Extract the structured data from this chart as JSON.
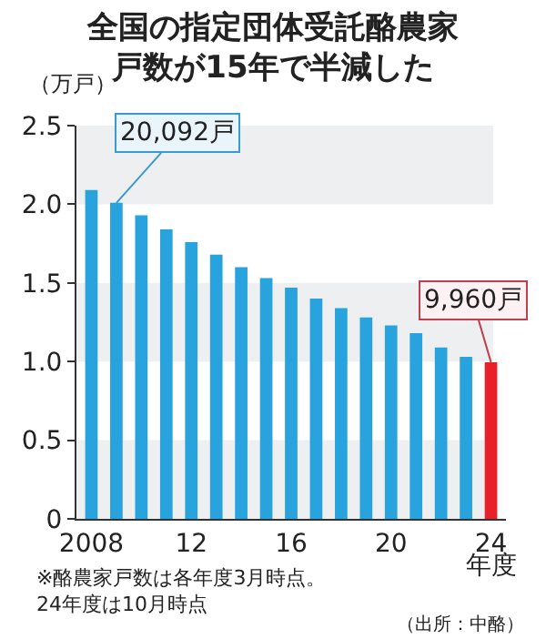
{
  "chart_data": {
    "type": "bar",
    "title": "全国の指定団体受託酪農家",
    "subtitle": "戸数が15年で半減した",
    "ylabel": "（万戸）",
    "xlabel": "年度",
    "categories": [
      "2008",
      null,
      null,
      null,
      "12",
      null,
      null,
      null,
      "16",
      null,
      null,
      null,
      "20",
      null,
      null,
      null,
      "24"
    ],
    "values": [
      2.09,
      2.0092,
      1.93,
      1.84,
      1.76,
      1.68,
      1.6,
      1.53,
      1.47,
      1.4,
      1.34,
      1.28,
      1.23,
      1.18,
      1.09,
      1.03,
      0.996
    ],
    "colors": [
      "#29a3dd",
      "#29a3dd",
      "#29a3dd",
      "#29a3dd",
      "#29a3dd",
      "#29a3dd",
      "#29a3dd",
      "#29a3dd",
      "#29a3dd",
      "#29a3dd",
      "#29a3dd",
      "#29a3dd",
      "#29a3dd",
      "#29a3dd",
      "#29a3dd",
      "#29a3dd",
      "#e8202a"
    ],
    "ylim": [
      0,
      2.5
    ],
    "yticks": [
      {
        "value": 0,
        "label": "0"
      },
      {
        "value": 0.5,
        "label": "0.5"
      },
      {
        "value": 1,
        "label": "1.0"
      },
      {
        "value": 1.5,
        "label": "1.5"
      },
      {
        "value": 2,
        "label": "2.0"
      },
      {
        "value": 2.5,
        "label": "2.5"
      }
    ],
    "bands": [
      {
        "axis": "y",
        "from": 0,
        "to": 0.5,
        "color": "#eeeff1"
      },
      {
        "axis": "y",
        "from": 1.0,
        "to": 1.5,
        "color": "#eeeff1"
      },
      {
        "axis": "y",
        "from": 2.0,
        "to": 2.5,
        "color": "#eeeff1"
      }
    ],
    "annotations": [
      {
        "text": "20,092戸",
        "y": 2.0092
      },
      {
        "text": "9,960戸",
        "x": "24",
        "y": 0.996
      },
      "※酪農家戸数は各年度3月時点。\n24年度は10月時点",
      "（出所：中酪）"
    ],
    "grid": false
  }
}
